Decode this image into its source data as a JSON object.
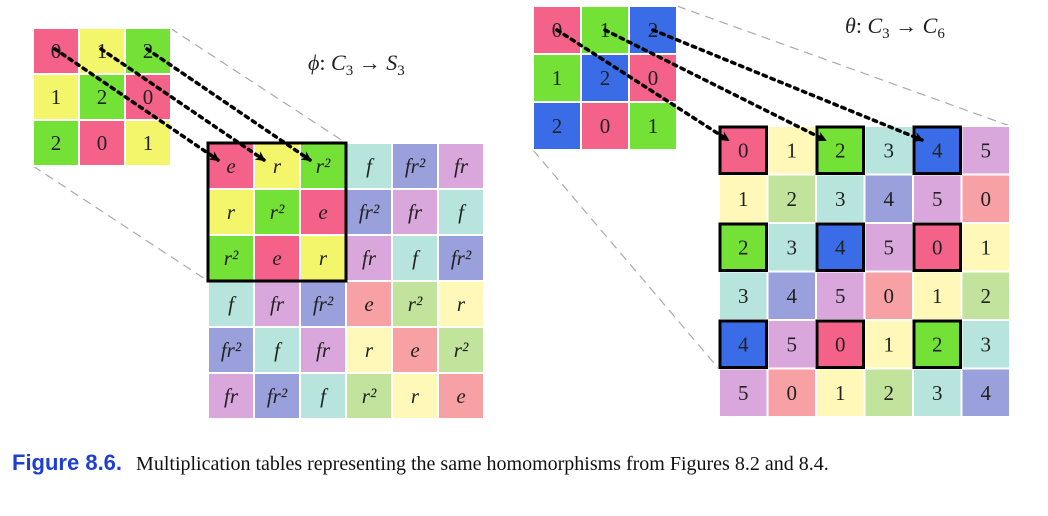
{
  "colors": {
    "e": "#f8a1a4",
    "r": "#fff8b8",
    "r2": "#c1e39c",
    "f": "#b7e4dc",
    "fr2": "#9aa0dc",
    "fr": "#d9a7dc",
    "bright_e": "#f46289",
    "bright_r": "#f3f56b",
    "bright_r2": "#73e136",
    "c6_0": "#f8a1a4",
    "c6_1": "#fff8b8",
    "c6_2": "#c1e39c",
    "c6_3": "#b7e4dc",
    "c6_4": "#9aa0dc",
    "c6_5": "#d9a7dc",
    "bright_0": "#f46289",
    "bright_2": "#73e136",
    "bright_4": "#3a6ce8",
    "grid_border": "#ffffff",
    "highlight_border": "#000000",
    "guide_line": "#aaaaaa",
    "caption_label": "#1f3fd0"
  },
  "left": {
    "label_math": [
      "ϕ",
      ": ",
      "C",
      "3",
      " → ",
      "S",
      "3"
    ],
    "small_table": {
      "cells": [
        [
          "0",
          "1",
          "2"
        ],
        [
          "1",
          "2",
          "0"
        ],
        [
          "2",
          "0",
          "1"
        ]
      ],
      "fill_keys": [
        [
          "bright_e",
          "bright_r",
          "bright_r2"
        ],
        [
          "bright_r",
          "bright_r2",
          "bright_e"
        ],
        [
          "bright_r2",
          "bright_e",
          "bright_r"
        ]
      ]
    },
    "big_table": {
      "cells": [
        [
          "e",
          "r",
          "r²",
          "f",
          "fr²",
          "fr"
        ],
        [
          "r",
          "r²",
          "e",
          "fr²",
          "fr",
          "f"
        ],
        [
          "r²",
          "e",
          "r",
          "fr",
          "f",
          "fr²"
        ],
        [
          "f",
          "fr",
          "fr²",
          "e",
          "r²",
          "r"
        ],
        [
          "fr²",
          "f",
          "fr",
          "r",
          "e",
          "r²"
        ],
        [
          "fr",
          "fr²",
          "f",
          "r²",
          "r",
          "e"
        ]
      ],
      "fill_keys": [
        [
          "bright_e",
          "bright_r",
          "bright_r2",
          "f",
          "fr2",
          "fr"
        ],
        [
          "bright_r",
          "bright_r2",
          "bright_e",
          "fr2",
          "fr",
          "f"
        ],
        [
          "bright_r2",
          "bright_e",
          "bright_r",
          "fr",
          "f",
          "fr2"
        ],
        [
          "f",
          "fr",
          "fr2",
          "e",
          "r2",
          "r"
        ],
        [
          "fr2",
          "f",
          "fr",
          "r",
          "e",
          "r2"
        ],
        [
          "fr",
          "fr2",
          "f",
          "r2",
          "r",
          "e"
        ]
      ],
      "highlight_block": [
        0,
        0,
        3
      ]
    }
  },
  "right": {
    "label_math": [
      "θ",
      ": ",
      "C",
      "3",
      " → ",
      "C",
      "6"
    ],
    "small_table": {
      "cells": [
        [
          "0",
          "1",
          "2"
        ],
        [
          "1",
          "2",
          "0"
        ],
        [
          "2",
          "0",
          "1"
        ]
      ],
      "fill_keys": [
        [
          "bright_0",
          "bright_2",
          "bright_4"
        ],
        [
          "bright_2",
          "bright_4",
          "bright_0"
        ],
        [
          "bright_4",
          "bright_0",
          "bright_2"
        ]
      ]
    },
    "big_table": {
      "cells": [
        [
          "0",
          "1",
          "2",
          "3",
          "4",
          "5"
        ],
        [
          "1",
          "2",
          "3",
          "4",
          "5",
          "0"
        ],
        [
          "2",
          "3",
          "4",
          "5",
          "0",
          "1"
        ],
        [
          "3",
          "4",
          "5",
          "0",
          "1",
          "2"
        ],
        [
          "4",
          "5",
          "0",
          "1",
          "2",
          "3"
        ],
        [
          "5",
          "0",
          "1",
          "2",
          "3",
          "4"
        ]
      ],
      "fill_keys": [
        [
          "bright_0",
          "c6_1",
          "bright_2",
          "c6_3",
          "bright_4",
          "c6_5"
        ],
        [
          "c6_1",
          "c6_2",
          "c6_3",
          "c6_4",
          "c6_5",
          "c6_0"
        ],
        [
          "bright_2",
          "c6_3",
          "bright_4",
          "c6_5",
          "bright_0",
          "c6_1"
        ],
        [
          "c6_3",
          "c6_4",
          "c6_5",
          "c6_0",
          "c6_1",
          "c6_2"
        ],
        [
          "bright_4",
          "c6_5",
          "bright_0",
          "c6_1",
          "bright_2",
          "c6_3"
        ],
        [
          "c6_5",
          "c6_0",
          "c6_1",
          "c6_2",
          "c6_3",
          "c6_4"
        ]
      ],
      "highlight_cells": [
        [
          0,
          0
        ],
        [
          0,
          2
        ],
        [
          0,
          4
        ],
        [
          2,
          0
        ],
        [
          2,
          2
        ],
        [
          2,
          4
        ],
        [
          4,
          0
        ],
        [
          4,
          2
        ],
        [
          4,
          4
        ]
      ]
    }
  },
  "caption": {
    "label": "Figure 8.6.",
    "text": "Multiplication tables representing the same homomorphisms from Figures 8.2 and 8.4."
  }
}
